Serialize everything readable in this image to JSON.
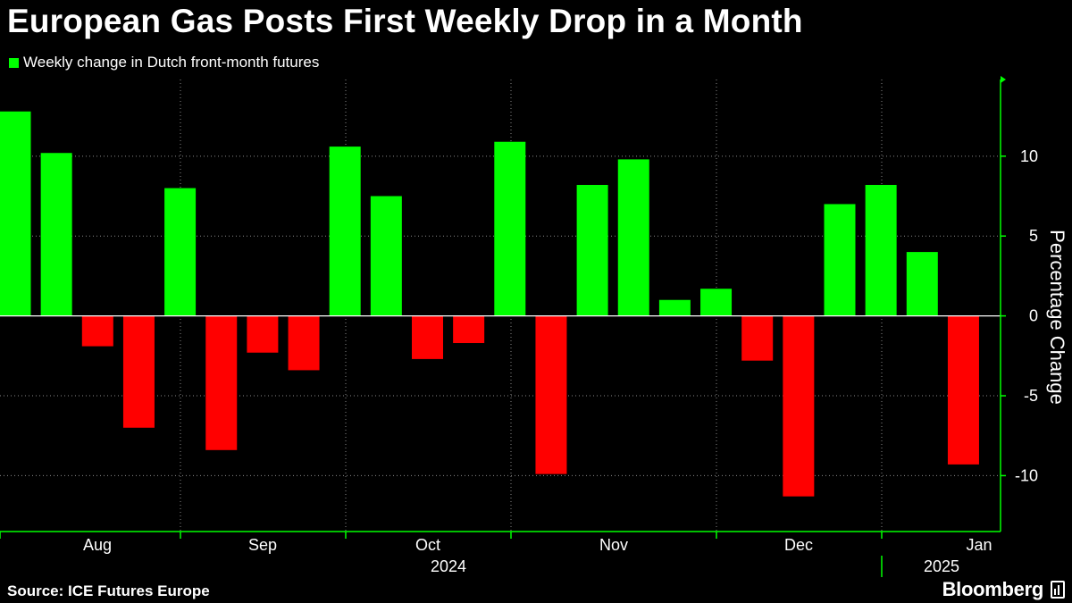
{
  "title": "European Gas Posts First Weekly Drop in a Month",
  "legend": {
    "label": "Weekly change in Dutch front-month futures",
    "color": "#00ff00"
  },
  "source": "Source: ICE Futures Europe",
  "brand": "Bloomberg",
  "colors": {
    "positive": "#00ff00",
    "negative": "#ff0000",
    "axis": "#00ff00",
    "grid": "#8a8a8a",
    "background": "#000000"
  },
  "chart_data": {
    "type": "bar",
    "title": "European Gas Posts First Weekly Drop in a Month",
    "ylabel": "Percentage Change",
    "xlabel": "",
    "ylim": [
      -13.5,
      14.8
    ],
    "yticks": [
      10,
      5,
      0,
      -5,
      -10
    ],
    "grid": true,
    "y_axis_position": "right",
    "x_tick_labels": [
      "Aug",
      "Sep",
      "Oct",
      "Nov",
      "Dec",
      "Jan"
    ],
    "year_labels": [
      "2024",
      "2025"
    ],
    "series": [
      {
        "name": "Weekly change in Dutch front-month futures",
        "values": [
          12.8,
          10.2,
          -1.9,
          -7.0,
          8.0,
          -8.4,
          -2.3,
          -3.4,
          10.6,
          7.5,
          -2.7,
          -1.7,
          10.9,
          -9.9,
          8.2,
          9.8,
          1.0,
          1.7,
          -2.8,
          -11.3,
          7.0,
          8.2,
          4.0,
          -9.3
        ]
      }
    ]
  }
}
